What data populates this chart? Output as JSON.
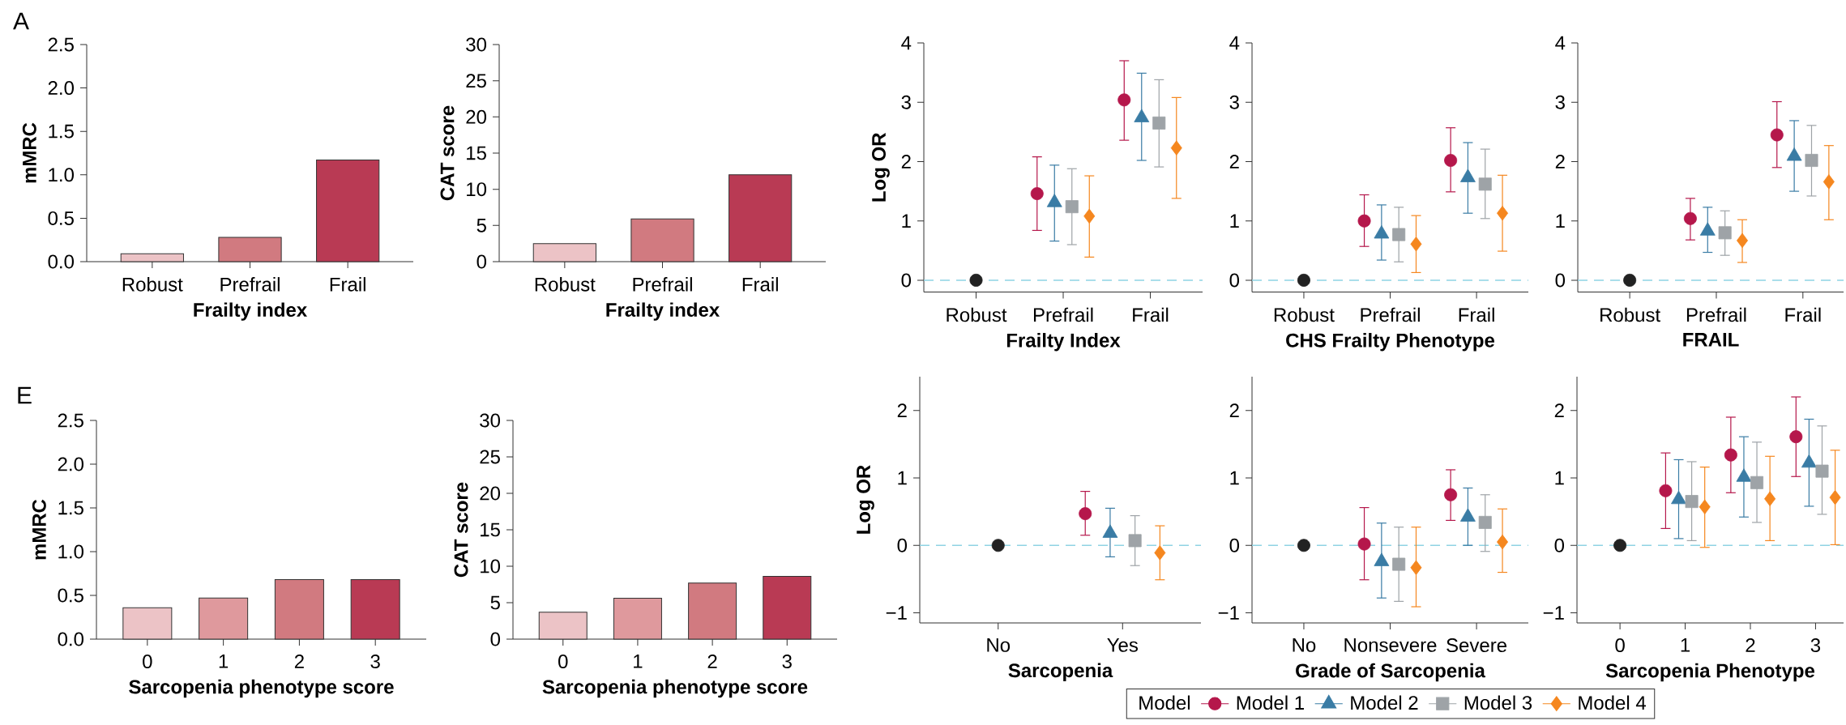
{
  "chart_data": [
    {
      "type": "bar",
      "annotations": [
        "A"
      ],
      "categories": [
        "Robust",
        "Prefrail",
        "Frail"
      ],
      "values": [
        0.09,
        0.28,
        1.17
      ],
      "colors": [
        "#ecc3c6",
        "#d17a80",
        "#b93a54"
      ],
      "xlabel": "Frailty index",
      "ylabel": "mMRC",
      "ylim": [
        0,
        2.5
      ],
      "yticks": [
        {
          "value": 0,
          "label": "0.0"
        },
        {
          "value": 0.5,
          "label": "0.5"
        },
        {
          "value": 1,
          "label": "1.0"
        },
        {
          "value": 1.5,
          "label": "1.5"
        },
        {
          "value": 2,
          "label": "2.0"
        },
        {
          "value": 2.5,
          "label": "2.5"
        }
      ]
    },
    {
      "type": "bar",
      "categories": [
        "Robust",
        "Prefrail",
        "Frail"
      ],
      "values": [
        2.5,
        5.9,
        12.0
      ],
      "colors": [
        "#ecc3c6",
        "#d17a80",
        "#b93a54"
      ],
      "xlabel": "Frailty index",
      "ylabel": "CAT score",
      "ylim": [
        0,
        30
      ],
      "yticks": [
        0,
        5,
        10,
        15,
        20,
        25,
        30
      ]
    },
    {
      "type": "scatter",
      "categories": [
        "Robust",
        "Prefrail",
        "Frail"
      ],
      "xlabel": "Frailty Index",
      "ylabel": "Log OR",
      "ylim": [
        -0.2,
        4
      ],
      "yticks": [
        0,
        1,
        2,
        3,
        4
      ],
      "ref_lines": [
        {
          "axis": "y",
          "value": 0,
          "color": "#8fd3e3",
          "line_style": "dashed"
        }
      ],
      "series": [
        {
          "color": "#222222",
          "marker": "circle",
          "values": [
            0,
            null,
            null
          ]
        },
        {
          "color": "#b5174b",
          "marker": "circle",
          "values": [
            null,
            1.46,
            3.04
          ],
          "errors": [
            null,
            [
              0.84,
              2.08
            ],
            [
              2.36,
              3.7
            ]
          ]
        },
        {
          "color": "#3a7ca5",
          "marker": "triangle",
          "values": [
            null,
            1.31,
            2.74
          ],
          "errors": [
            null,
            [
              0.66,
              1.94
            ],
            [
              2.02,
              3.49
            ]
          ]
        },
        {
          "color": "#9ea3a7",
          "marker": "square",
          "values": [
            null,
            1.24,
            2.65
          ],
          "errors": [
            null,
            [
              0.6,
              1.88
            ],
            [
              1.91,
              3.38
            ]
          ]
        },
        {
          "color": "#f5871f",
          "marker": "diamond",
          "values": [
            null,
            1.08,
            2.23
          ],
          "errors": [
            null,
            [
              0.39,
              1.76
            ],
            [
              1.38,
              3.08
            ]
          ]
        }
      ]
    },
    {
      "type": "scatter",
      "categories": [
        "Robust",
        "Prefrail",
        "Frail"
      ],
      "xlabel": "CHS Frailty Phenotype",
      "ylim": [
        -0.2,
        4
      ],
      "yticks": [
        0,
        1,
        2,
        3,
        4
      ],
      "ref_lines": [
        {
          "axis": "y",
          "value": 0,
          "color": "#8fd3e3",
          "line_style": "dashed"
        }
      ],
      "series": [
        {
          "color": "#222222",
          "marker": "circle",
          "values": [
            0,
            null,
            null
          ]
        },
        {
          "color": "#b5174b",
          "marker": "circle",
          "values": [
            null,
            1.0,
            2.02
          ],
          "errors": [
            null,
            [
              0.57,
              1.44
            ],
            [
              1.49,
              2.57
            ]
          ]
        },
        {
          "color": "#3a7ca5",
          "marker": "triangle",
          "values": [
            null,
            0.78,
            1.73
          ],
          "errors": [
            null,
            [
              0.34,
              1.27
            ],
            [
              1.13,
              2.32
            ]
          ]
        },
        {
          "color": "#9ea3a7",
          "marker": "square",
          "values": [
            null,
            0.77,
            1.62
          ],
          "errors": [
            null,
            [
              0.31,
              1.23
            ],
            [
              1.04,
              2.21
            ]
          ]
        },
        {
          "color": "#f5871f",
          "marker": "diamond",
          "values": [
            null,
            0.61,
            1.13
          ],
          "errors": [
            null,
            [
              0.13,
              1.09
            ],
            [
              0.49,
              1.77
            ]
          ]
        }
      ]
    },
    {
      "type": "scatter",
      "categories": [
        "Robust",
        "Prefrail",
        "Frail"
      ],
      "xlabel": "FRAIL",
      "ylim": [
        -0.2,
        4
      ],
      "yticks": [
        0,
        1,
        2,
        3,
        4
      ],
      "ref_lines": [
        {
          "axis": "y",
          "value": 0,
          "color": "#8fd3e3",
          "line_style": "dashed"
        }
      ],
      "series": [
        {
          "color": "#222222",
          "marker": "circle",
          "values": [
            0,
            null,
            null
          ]
        },
        {
          "color": "#b5174b",
          "marker": "circle",
          "values": [
            null,
            1.04,
            2.45
          ],
          "errors": [
            null,
            [
              0.68,
              1.38
            ],
            [
              1.9,
              3.01
            ]
          ]
        },
        {
          "color": "#3a7ca5",
          "marker": "triangle",
          "values": [
            null,
            0.83,
            2.09
          ],
          "errors": [
            null,
            [
              0.47,
              1.23
            ],
            [
              1.5,
              2.69
            ]
          ]
        },
        {
          "color": "#9ea3a7",
          "marker": "square",
          "values": [
            null,
            0.8,
            2.02
          ],
          "errors": [
            null,
            [
              0.42,
              1.17
            ],
            [
              1.42,
              2.61
            ]
          ]
        },
        {
          "color": "#f5871f",
          "marker": "diamond",
          "values": [
            null,
            0.67,
            1.66
          ],
          "errors": [
            null,
            [
              0.3,
              1.02
            ],
            [
              1.02,
              2.27
            ]
          ]
        }
      ]
    },
    {
      "type": "bar",
      "annotations": [
        "E"
      ],
      "categories": [
        "0",
        "1",
        "2",
        "3"
      ],
      "values": [
        0.36,
        0.47,
        0.68,
        0.68
      ],
      "colors": [
        "#ecc3c6",
        "#df999d",
        "#d17a80",
        "#b93a54"
      ],
      "xlabel": "Sarcopenia phenotype score",
      "ylabel": "mMRC",
      "ylim": [
        0,
        2.5
      ],
      "yticks": [
        {
          "value": 0,
          "label": "0.0"
        },
        {
          "value": 0.5,
          "label": "0.5"
        },
        {
          "value": 1,
          "label": "1.0"
        },
        {
          "value": 1.5,
          "label": "1.5"
        },
        {
          "value": 2,
          "label": "2.0"
        },
        {
          "value": 2.5,
          "label": "2.5"
        }
      ]
    },
    {
      "type": "bar",
      "categories": [
        "0",
        "1",
        "2",
        "3"
      ],
      "values": [
        3.7,
        5.6,
        7.7,
        8.6
      ],
      "colors": [
        "#ecc3c6",
        "#df999d",
        "#d17a80",
        "#b93a54"
      ],
      "xlabel": "Sarcopenia phenotype score",
      "ylabel": "CAT score",
      "ylim": [
        0,
        30
      ],
      "yticks": [
        0,
        5,
        10,
        15,
        20,
        25,
        30
      ]
    },
    {
      "type": "scatter",
      "categories": [
        "No",
        "Yes"
      ],
      "xlabel": "Sarcopenia",
      "ylabel": "Log OR",
      "ylim": [
        -1.15,
        2.5
      ],
      "yticks": [
        {
          "value": -1,
          "label": "−1"
        },
        0,
        1,
        2
      ],
      "ref_lines": [
        {
          "axis": "y",
          "value": 0,
          "color": "#8fd3e3",
          "line_style": "dashed"
        }
      ],
      "series": [
        {
          "color": "#222222",
          "marker": "circle",
          "values": [
            0,
            null
          ]
        },
        {
          "color": "#b5174b",
          "marker": "circle",
          "values": [
            null,
            0.47
          ],
          "errors": [
            null,
            [
              0.15,
              0.8
            ]
          ]
        },
        {
          "color": "#3a7ca5",
          "marker": "triangle",
          "values": [
            null,
            0.18
          ],
          "errors": [
            null,
            [
              -0.17,
              0.55
            ]
          ]
        },
        {
          "color": "#9ea3a7",
          "marker": "square",
          "values": [
            null,
            0.07
          ],
          "errors": [
            null,
            [
              -0.3,
              0.44
            ]
          ]
        },
        {
          "color": "#f5871f",
          "marker": "diamond",
          "values": [
            null,
            -0.11
          ],
          "errors": [
            null,
            [
              -0.51,
              0.29
            ]
          ]
        }
      ]
    },
    {
      "type": "scatter",
      "categories": [
        "No",
        "Nonsevere",
        "Severe"
      ],
      "xlabel": "Grade of Sarcopenia",
      "ylim": [
        -1.15,
        2.5
      ],
      "yticks": [
        {
          "value": -1,
          "label": "−1"
        },
        0,
        1,
        2
      ],
      "ref_lines": [
        {
          "axis": "y",
          "value": 0,
          "color": "#8fd3e3",
          "line_style": "dashed"
        }
      ],
      "series": [
        {
          "color": "#222222",
          "marker": "circle",
          "values": [
            0,
            null,
            null
          ]
        },
        {
          "color": "#b5174b",
          "marker": "circle",
          "values": [
            null,
            0.02,
            0.75
          ],
          "errors": [
            null,
            [
              -0.51,
              0.56
            ],
            [
              0.37,
              1.12
            ]
          ]
        },
        {
          "color": "#3a7ca5",
          "marker": "triangle",
          "values": [
            null,
            -0.24,
            0.42
          ],
          "errors": [
            null,
            [
              -0.78,
              0.33
            ],
            [
              0.0,
              0.85
            ]
          ]
        },
        {
          "color": "#9ea3a7",
          "marker": "square",
          "values": [
            null,
            -0.28,
            0.34
          ],
          "errors": [
            null,
            [
              -0.83,
              0.27
            ],
            [
              -0.09,
              0.75
            ]
          ]
        },
        {
          "color": "#f5871f",
          "marker": "diamond",
          "values": [
            null,
            -0.33,
            0.05
          ],
          "errors": [
            null,
            [
              -0.91,
              0.27
            ],
            [
              -0.4,
              0.54
            ]
          ]
        }
      ]
    },
    {
      "type": "scatter",
      "categories": [
        "0",
        "1",
        "2",
        "3"
      ],
      "xlabel": "Sarcopenia Phenotype",
      "ylim": [
        -1.15,
        2.5
      ],
      "yticks": [
        {
          "value": -1,
          "label": "−1"
        },
        0,
        1,
        2
      ],
      "legend": "bottom",
      "legend_title": "Model",
      "ref_lines": [
        {
          "axis": "y",
          "value": 0,
          "color": "#8fd3e3",
          "line_style": "dashed"
        }
      ],
      "series": [
        {
          "color": "#222222",
          "marker": "circle",
          "values": [
            0,
            null,
            null,
            null
          ]
        },
        {
          "name": "Model 1",
          "color": "#b5174b",
          "marker": "circle",
          "values": [
            null,
            0.81,
            1.34,
            1.61
          ],
          "errors": [
            null,
            [
              0.25,
              1.37
            ],
            [
              0.78,
              1.9
            ],
            [
              1.02,
              2.2
            ]
          ]
        },
        {
          "name": "Model 2",
          "color": "#3a7ca5",
          "marker": "triangle",
          "values": [
            null,
            0.68,
            1.01,
            1.22
          ],
          "errors": [
            null,
            [
              0.1,
              1.27
            ],
            [
              0.42,
              1.61
            ],
            [
              0.58,
              1.87
            ]
          ]
        },
        {
          "name": "Model 3",
          "color": "#9ea3a7",
          "marker": "square",
          "values": [
            null,
            0.65,
            0.93,
            1.1
          ],
          "errors": [
            null,
            [
              0.07,
              1.24
            ],
            [
              0.34,
              1.53
            ],
            [
              0.46,
              1.77
            ]
          ]
        },
        {
          "name": "Model 4",
          "color": "#f5871f",
          "marker": "diamond",
          "values": [
            null,
            0.57,
            0.69,
            0.71
          ],
          "errors": [
            null,
            [
              -0.03,
              1.16
            ],
            [
              0.07,
              1.32
            ],
            [
              0.01,
              1.41
            ]
          ]
        }
      ]
    }
  ]
}
